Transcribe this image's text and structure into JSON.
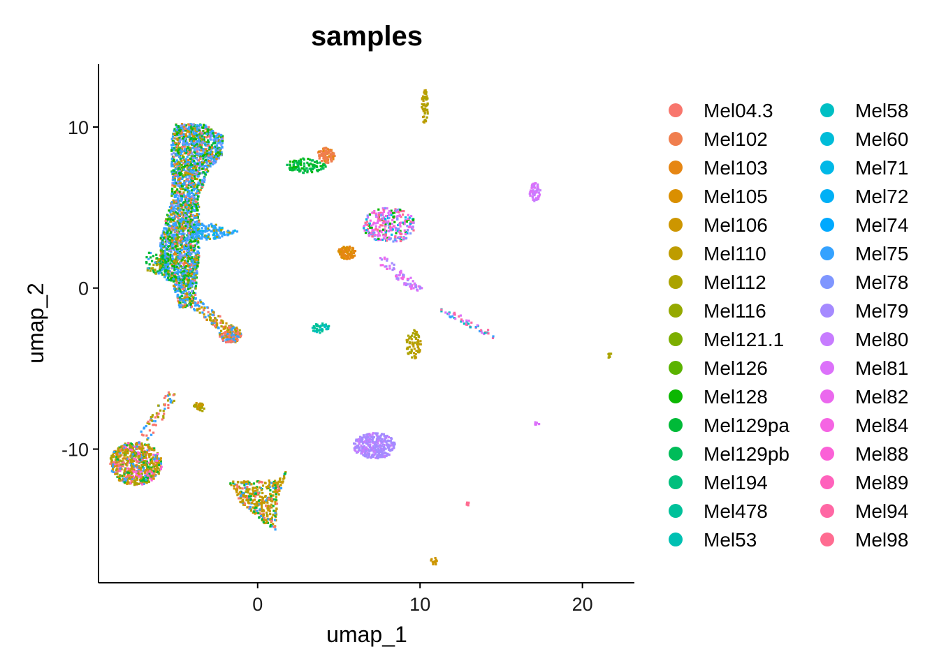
{
  "chart_data": {
    "type": "scatter",
    "title": "samples",
    "xlabel": "umap_1",
    "ylabel": "umap_2",
    "xlim": [
      -9.8,
      23.2
    ],
    "ylim": [
      -18.3,
      13.9
    ],
    "x_ticks": [
      0,
      10,
      20
    ],
    "y_ticks": [
      -10,
      0,
      10
    ],
    "grid": false,
    "legend_position": "right",
    "series": [
      {
        "name": "Mel04.3",
        "color": "#F8766D"
      },
      {
        "name": "Mel102",
        "color": "#F07E4E"
      },
      {
        "name": "Mel103",
        "color": "#E68613"
      },
      {
        "name": "Mel105",
        "color": "#DA8F00"
      },
      {
        "name": "Mel106",
        "color": "#CD9600"
      },
      {
        "name": "Mel110",
        "color": "#BE9C00"
      },
      {
        "name": "Mel112",
        "color": "#ABA300"
      },
      {
        "name": "Mel116",
        "color": "#95A900"
      },
      {
        "name": "Mel121.1",
        "color": "#7CAE00"
      },
      {
        "name": "Mel126",
        "color": "#5BB300"
      },
      {
        "name": "Mel128",
        "color": "#0CB702"
      },
      {
        "name": "Mel129pa",
        "color": "#00BA38"
      },
      {
        "name": "Mel129pb",
        "color": "#00BC59"
      },
      {
        "name": "Mel194",
        "color": "#00BF7D"
      },
      {
        "name": "Mel478",
        "color": "#00C19A"
      },
      {
        "name": "Mel53",
        "color": "#00C0B2"
      },
      {
        "name": "Mel58",
        "color": "#00BFC4"
      },
      {
        "name": "Mel60",
        "color": "#00BCD8"
      },
      {
        "name": "Mel71",
        "color": "#00B8E7"
      },
      {
        "name": "Mel72",
        "color": "#00B0F6"
      },
      {
        "name": "Mel74",
        "color": "#00A9FF"
      },
      {
        "name": "Mel75",
        "color": "#35A2FF"
      },
      {
        "name": "Mel78",
        "color": "#7F96FF"
      },
      {
        "name": "Mel79",
        "color": "#A58AFF"
      },
      {
        "name": "Mel80",
        "color": "#C77CFF"
      },
      {
        "name": "Mel81",
        "color": "#DC71FA"
      },
      {
        "name": "Mel82",
        "color": "#EB68EE"
      },
      {
        "name": "Mel84",
        "color": "#F564E3"
      },
      {
        "name": "Mel88",
        "color": "#FB61D7"
      },
      {
        "name": "Mel89",
        "color": "#FF62BC"
      },
      {
        "name": "Mel94",
        "color": "#FF67A4"
      },
      {
        "name": "Mel98",
        "color": "#FF6C91"
      }
    ],
    "clusters": [
      {
        "shape": "poly",
        "pts": [
          [
            -5.1,
            10.2
          ],
          [
            -3.3,
            10.2
          ],
          [
            -2.1,
            9.4
          ],
          [
            -2.2,
            8.2
          ],
          [
            -3.0,
            7.4
          ],
          [
            -3.6,
            5.7
          ],
          [
            -3.6,
            2.0
          ],
          [
            -3.8,
            0.0
          ],
          [
            -3.8,
            -1.2
          ],
          [
            -4.8,
            -1.2
          ],
          [
            -5.2,
            0.2
          ],
          [
            -6.0,
            1.3
          ],
          [
            -6.0,
            3.0
          ],
          [
            -5.3,
            5.5
          ],
          [
            -5.3,
            9.2
          ]
        ],
        "n": 2600,
        "mix": [
          21,
          22,
          10,
          11,
          6,
          2,
          0,
          4,
          9
        ],
        "weights": [
          5,
          2,
          2,
          2,
          1,
          1,
          1,
          1,
          1
        ]
      },
      {
        "shape": "poly",
        "pts": [
          [
            -3.8,
            4.0
          ],
          [
            -2.8,
            4.0
          ],
          [
            -1.8,
            3.7
          ],
          [
            -0.9,
            3.5
          ],
          [
            -2.8,
            3.0
          ],
          [
            -3.8,
            3.0
          ]
        ],
        "n": 140,
        "mix": [
          21,
          6,
          18
        ],
        "weights": [
          4,
          1,
          1
        ]
      },
      {
        "shape": "poly",
        "pts": [
          [
            -6.9,
            2.2
          ],
          [
            -5.6,
            2.2
          ],
          [
            -5.4,
            0.4
          ],
          [
            -6.8,
            1.0
          ]
        ],
        "n": 100,
        "mix": [
          11,
          6,
          21
        ],
        "weights": [
          2,
          1,
          1
        ]
      },
      {
        "shape": "line",
        "a": [
          -3.8,
          -1.0
        ],
        "b": [
          -1.2,
          -3.1
        ],
        "w": 0.35,
        "n": 120,
        "mix": [
          21,
          0,
          6,
          4
        ],
        "weights": [
          2,
          1,
          1,
          1
        ]
      },
      {
        "shape": "ellipse",
        "c": [
          -1.7,
          -2.9
        ],
        "rx": 0.7,
        "ry": 0.55,
        "n": 120,
        "mix": [
          0,
          6,
          4,
          21
        ],
        "weights": [
          2,
          1,
          1,
          1
        ]
      },
      {
        "shape": "ellipse",
        "c": [
          -7.5,
          -10.9
        ],
        "rx": 1.6,
        "ry": 1.35,
        "n": 700,
        "mix": [
          6,
          4,
          11,
          0,
          21,
          28
        ],
        "weights": [
          2,
          2,
          1,
          1,
          1,
          1
        ]
      },
      {
        "shape": "line",
        "a": [
          -5.2,
          -6.5
        ],
        "b": [
          -7.0,
          -9.3
        ],
        "w": 0.35,
        "n": 60,
        "mix": [
          6,
          21,
          0
        ],
        "weights": [
          1,
          1,
          1
        ]
      },
      {
        "shape": "ellipse",
        "c": [
          -3.6,
          -7.4
        ],
        "rx": 0.35,
        "ry": 0.3,
        "n": 30,
        "mix": [
          6,
          4
        ],
        "weights": [
          1,
          1
        ]
      },
      {
        "shape": "poly",
        "pts": [
          [
            -1.8,
            -12.0
          ],
          [
            0.3,
            -12.0
          ],
          [
            1.5,
            -11.8
          ],
          [
            1.9,
            -10.9
          ],
          [
            1.2,
            -13.3
          ],
          [
            1.1,
            -15.1
          ],
          [
            0.4,
            -14.6
          ],
          [
            -1.0,
            -13.4
          ]
        ],
        "n": 380,
        "mix": [
          5,
          4,
          11,
          0,
          21
        ],
        "weights": [
          3,
          2,
          1,
          1,
          1
        ]
      },
      {
        "shape": "ellipse",
        "c": [
          3.0,
          7.6
        ],
        "rx": 1.2,
        "ry": 0.45,
        "n": 110,
        "mix": [
          11,
          10,
          12
        ],
        "weights": [
          2,
          1,
          1
        ]
      },
      {
        "shape": "ellipse",
        "c": [
          4.2,
          8.2
        ],
        "rx": 0.55,
        "ry": 0.5,
        "n": 90,
        "mix": [
          1,
          2
        ],
        "weights": [
          2,
          1
        ]
      },
      {
        "shape": "ellipse",
        "c": [
          5.5,
          2.2
        ],
        "rx": 0.55,
        "ry": 0.4,
        "n": 90,
        "mix": [
          2,
          3
        ],
        "weights": [
          2,
          1
        ]
      },
      {
        "shape": "ellipse",
        "c": [
          8.1,
          3.9
        ],
        "rx": 1.6,
        "ry": 1.1,
        "n": 280,
        "mix": [
          27,
          10,
          22,
          18,
          31,
          25
        ],
        "weights": [
          2,
          1,
          1,
          1,
          1,
          1
        ]
      },
      {
        "shape": "line",
        "a": [
          7.5,
          1.8
        ],
        "b": [
          10.0,
          -0.2
        ],
        "w": 0.3,
        "n": 70,
        "mix": [
          25,
          23,
          27
        ],
        "weights": [
          1,
          1,
          1
        ]
      },
      {
        "shape": "line",
        "a": [
          11.3,
          -1.3
        ],
        "b": [
          14.6,
          -3.0
        ],
        "w": 0.2,
        "n": 50,
        "mix": [
          16,
          25,
          30,
          21
        ],
        "weights": [
          1,
          1,
          1,
          1
        ]
      },
      {
        "shape": "ellipse",
        "c": [
          3.9,
          -2.5
        ],
        "rx": 0.55,
        "ry": 0.3,
        "n": 40,
        "mix": [
          14,
          16
        ],
        "weights": [
          1,
          1
        ]
      },
      {
        "shape": "ellipse",
        "c": [
          9.6,
          -3.5
        ],
        "rx": 0.45,
        "ry": 0.9,
        "n": 70,
        "mix": [
          5,
          6
        ],
        "weights": [
          1,
          1
        ]
      },
      {
        "shape": "ellipse",
        "c": [
          7.2,
          -9.8
        ],
        "rx": 1.3,
        "ry": 0.8,
        "n": 320,
        "mix": [
          23,
          24
        ],
        "weights": [
          4,
          1
        ]
      },
      {
        "shape": "ellipse",
        "c": [
          10.3,
          11.3
        ],
        "rx": 0.2,
        "ry": 1.1,
        "n": 50,
        "mix": [
          5,
          6
        ],
        "weights": [
          1,
          1
        ]
      },
      {
        "shape": "ellipse",
        "c": [
          17.1,
          6.0
        ],
        "rx": 0.35,
        "ry": 0.6,
        "n": 60,
        "mix": [
          25,
          24
        ],
        "weights": [
          2,
          1
        ]
      },
      {
        "shape": "ellipse",
        "c": [
          21.7,
          -4.2
        ],
        "rx": 0.15,
        "ry": 0.18,
        "n": 8,
        "mix": [
          6
        ],
        "weights": [
          1
        ]
      },
      {
        "shape": "ellipse",
        "c": [
          17.2,
          -8.4
        ],
        "rx": 0.15,
        "ry": 0.12,
        "n": 6,
        "mix": [
          25
        ],
        "weights": [
          1
        ]
      },
      {
        "shape": "ellipse",
        "c": [
          12.9,
          -13.4
        ],
        "rx": 0.15,
        "ry": 0.12,
        "n": 6,
        "mix": [
          31
        ],
        "weights": [
          1
        ]
      },
      {
        "shape": "ellipse",
        "c": [
          10.9,
          -16.9
        ],
        "rx": 0.25,
        "ry": 0.3,
        "n": 12,
        "mix": [
          4
        ],
        "weights": [
          1
        ]
      }
    ]
  }
}
